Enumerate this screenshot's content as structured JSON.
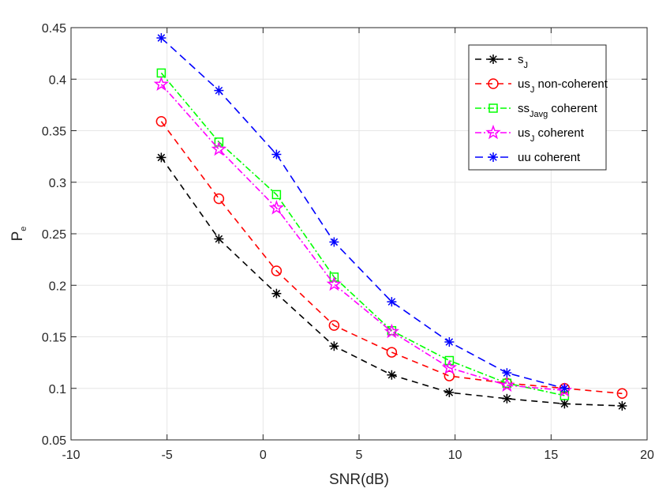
{
  "chart_data": {
    "type": "line",
    "xlabel": "SNR(dB)",
    "ylabel_main": "P",
    "ylabel_sub": "e",
    "xlim": [
      -10,
      20
    ],
    "ylim": [
      0.05,
      0.45
    ],
    "xticks": [
      -10,
      -5,
      0,
      5,
      10,
      15,
      20
    ],
    "yticks": [
      0.05,
      0.1,
      0.15,
      0.2,
      0.25,
      0.3,
      0.35,
      0.4,
      0.45
    ],
    "xtick_labels": [
      "-10",
      "-5",
      "0",
      "5",
      "10",
      "15",
      "20"
    ],
    "ytick_labels": [
      "0.05",
      "0.1",
      "0.15",
      "0.2",
      "0.25",
      "0.3",
      "0.35",
      "0.4",
      "0.45"
    ],
    "grid": true,
    "legend_position": "top-right",
    "series": [
      {
        "name": "s_J",
        "legend_main": "s",
        "legend_sub": "J",
        "legend_rest": "",
        "color": "#000000",
        "dash": "8,6",
        "marker": "asterisk",
        "x": [
          -5.3,
          -2.3,
          0.7,
          3.7,
          6.7,
          9.7,
          12.7,
          15.7,
          18.7
        ],
        "y": [
          0.324,
          0.245,
          0.192,
          0.141,
          0.113,
          0.096,
          0.09,
          0.085,
          0.083
        ]
      },
      {
        "name": "us_J non-coherent",
        "legend_main": "us",
        "legend_sub": "J",
        "legend_rest": " non-coherent",
        "color": "#ff0000",
        "dash": "8,6",
        "marker": "circle",
        "x": [
          -5.3,
          -2.3,
          0.7,
          3.7,
          6.7,
          9.7,
          12.7,
          15.7,
          18.7
        ],
        "y": [
          0.359,
          0.284,
          0.214,
          0.161,
          0.135,
          0.112,
          0.105,
          0.1,
          0.095
        ]
      },
      {
        "name": "ss_Javg coherent",
        "legend_main": "ss",
        "legend_sub": "Javg",
        "legend_rest": " coherent",
        "color": "#00ff00",
        "dash": "8,3,2,3",
        "marker": "square",
        "x": [
          -5.3,
          -2.3,
          0.7,
          3.7,
          6.7,
          9.7,
          12.7,
          15.7
        ],
        "y": [
          0.406,
          0.339,
          0.288,
          0.208,
          0.156,
          0.127,
          0.105,
          0.093
        ]
      },
      {
        "name": "us_J coherent",
        "legend_main": "us",
        "legend_sub": "J",
        "legend_rest": " coherent",
        "color": "#ff00ff",
        "dash": "8,3,2,3",
        "marker": "star",
        "x": [
          -5.3,
          -2.3,
          0.7,
          3.7,
          6.7,
          9.7,
          12.7,
          15.7
        ],
        "y": [
          0.395,
          0.332,
          0.275,
          0.201,
          0.155,
          0.12,
          0.103,
          0.098
        ]
      },
      {
        "name": "uu coherent",
        "legend_main": "uu coherent",
        "legend_sub": "",
        "legend_rest": "",
        "color": "#0000ff",
        "dash": "10,6",
        "marker": "asterisk",
        "x": [
          -5.3,
          -2.3,
          0.7,
          3.7,
          6.7,
          9.7,
          12.7,
          15.7
        ],
        "y": [
          0.44,
          0.389,
          0.327,
          0.242,
          0.184,
          0.145,
          0.115,
          0.1
        ]
      }
    ]
  }
}
